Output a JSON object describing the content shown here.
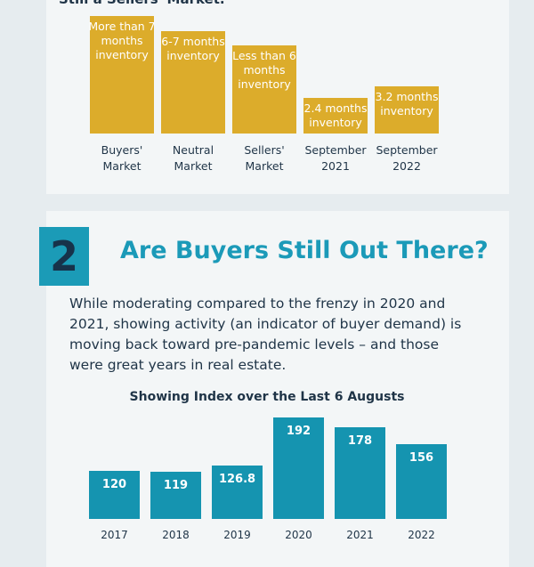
{
  "chart_data": [
    {
      "type": "bar",
      "title": "Still a Sellers' Market.",
      "categories": [
        "Buyers' Market",
        "Neutral Market",
        "Sellers' Market",
        "September 2021",
        "September 2022"
      ],
      "values": [
        8,
        7,
        6,
        2.4,
        3.2
      ],
      "value_labels": [
        "More than 7 months inventory",
        "6-7 months inventory",
        "Less than 6 months inventory",
        "2.4 months inventory",
        "3.2 months inventory"
      ],
      "color": "#dcac2b",
      "ylim": [
        0,
        8.5
      ]
    },
    {
      "type": "bar",
      "title": "Showing Index over the Last 6 Augusts",
      "categories": [
        "2017",
        "2018",
        "2019",
        "2020",
        "2021",
        "2022"
      ],
      "values": [
        120,
        119,
        126.8,
        192,
        178,
        156
      ],
      "color": "#1594b0",
      "ylim": [
        55,
        200
      ]
    }
  ],
  "section": {
    "number": "2",
    "title": "Are Buyers Still Out There?",
    "body": "While moderating compared to the frenzy in 2020 and 2021, showing activity (an indicator of buyer demand) is moving back toward pre-pandemic levels – and those were great years in real estate."
  }
}
